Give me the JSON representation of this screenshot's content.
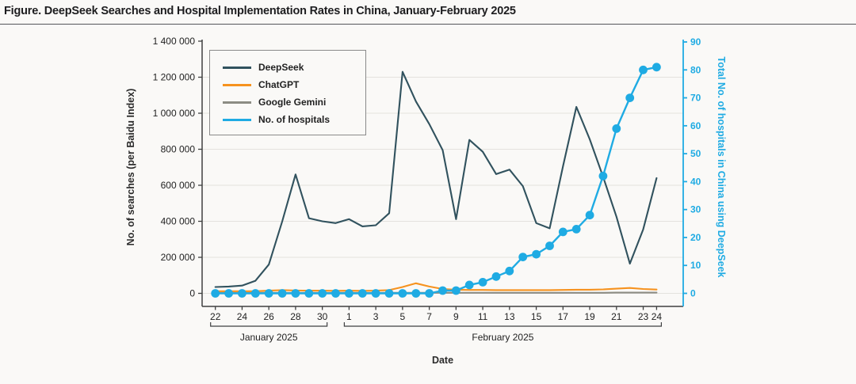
{
  "title": "Figure. DeepSeek Searches and Hospital Implementation Rates in China, January-February 2025",
  "chart_data": {
    "type": "line",
    "x_dates": [
      "Jan 22",
      "Jan 23",
      "Jan 24",
      "Jan 25",
      "Jan 26",
      "Jan 27",
      "Jan 28",
      "Jan 29",
      "Jan 30",
      "Jan 31",
      "Feb 1",
      "Feb 2",
      "Feb 3",
      "Feb 4",
      "Feb 5",
      "Feb 6",
      "Feb 7",
      "Feb 8",
      "Feb 9",
      "Feb 10",
      "Feb 11",
      "Feb 12",
      "Feb 13",
      "Feb 14",
      "Feb 15",
      "Feb 16",
      "Feb 17",
      "Feb 18",
      "Feb 19",
      "Feb 20",
      "Feb 21",
      "Feb 22",
      "Feb 23",
      "Feb 24"
    ],
    "series": [
      {
        "name": "DeepSeek",
        "color": "#31525e",
        "axis": "left",
        "markers": false,
        "values": [
          35000,
          38000,
          43000,
          70000,
          160000,
          400000,
          660000,
          417000,
          400000,
          390000,
          412000,
          372000,
          378000,
          445000,
          1230000,
          1065000,
          940000,
          795000,
          412000,
          852000,
          786000,
          662000,
          687000,
          595000,
          390000,
          361000,
          705000,
          1035000,
          855000,
          647000,
          425000,
          165000,
          355000,
          640000
        ]
      },
      {
        "name": "ChatGPT",
        "color": "#f6921e",
        "axis": "left",
        "markers": false,
        "values": [
          12000,
          12000,
          12000,
          12000,
          15000,
          18000,
          16000,
          15000,
          15000,
          14000,
          15000,
          14000,
          15000,
          18000,
          35000,
          56000,
          38000,
          24000,
          20000,
          19000,
          19000,
          18000,
          18000,
          18000,
          18000,
          18000,
          19000,
          20000,
          20000,
          22000,
          26000,
          30000,
          24000,
          21000
        ]
      },
      {
        "name": "Google Gemini",
        "color": "#8c8c83",
        "axis": "left",
        "markers": false,
        "values": [
          3000,
          3000,
          3000,
          3000,
          3000,
          3000,
          3000,
          3000,
          3000,
          3000,
          3000,
          3000,
          3000,
          3000,
          3000,
          3000,
          3000,
          3000,
          3000,
          3000,
          3000,
          3000,
          3000,
          3000,
          3000,
          3000,
          3000,
          3000,
          3000,
          3000,
          4000,
          4000,
          4000,
          4000
        ]
      },
      {
        "name": "No. of hospitals",
        "color": "#1fabe3",
        "axis": "right",
        "markers": true,
        "values": [
          0,
          0,
          0,
          0,
          0,
          0,
          0,
          0,
          0,
          0,
          0,
          0,
          0,
          0,
          0,
          0,
          0,
          1,
          1,
          3,
          4,
          6,
          8,
          13,
          14,
          17,
          22,
          23,
          28,
          42,
          59,
          70,
          80,
          81
        ]
      }
    ],
    "left_axis": {
      "label": "No. of searches (per Baidu Index)",
      "max": 1400000,
      "ticks": [
        0,
        200000,
        400000,
        600000,
        800000,
        1000000,
        1200000,
        1400000
      ],
      "tick_labels": [
        "0",
        "200 000",
        "400 000",
        "600 000",
        "800 000",
        "1 000 000",
        "1 200 000",
        "1 400 000"
      ]
    },
    "right_axis": {
      "label": "Total No. of hospitals in China using DeepSeek",
      "max": 90,
      "ticks": [
        0,
        10,
        20,
        30,
        40,
        50,
        60,
        70,
        80,
        90
      ]
    },
    "x_axis": {
      "label": "Date",
      "tick_days": [
        0,
        2,
        4,
        6,
        8,
        10,
        12,
        14,
        16,
        18,
        20,
        22,
        24,
        26,
        28,
        30,
        32,
        33
      ],
      "tick_labels": [
        "22",
        "24",
        "26",
        "28",
        "30",
        "1",
        "3",
        "5",
        "7",
        "9",
        "11",
        "13",
        "15",
        "17",
        "19",
        "21",
        "23",
        "24"
      ],
      "month_spans": [
        {
          "label": "January 2025",
          "start_day": 0,
          "end_day": 8
        },
        {
          "label": "February 2025",
          "start_day": 10,
          "end_day": 33
        }
      ]
    },
    "grid": "horizontal",
    "legend_position": "top-left",
    "colors": {
      "grid": "#e4e2de",
      "axis": "#3f4041",
      "text": "#222222",
      "right_accent": "#1fabe3"
    }
  }
}
